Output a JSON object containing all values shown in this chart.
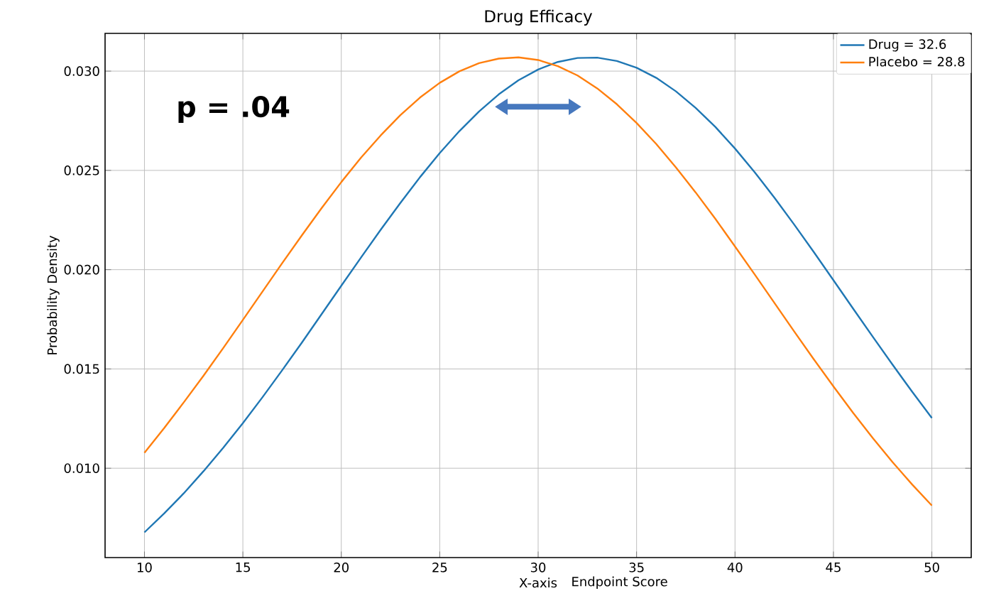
{
  "chart_data": {
    "type": "line",
    "title": "Drug Efficacy",
    "xlabel": "X-axis",
    "ylabel": "Probability Density",
    "annotations": [
      "p = .04",
      "Endpoint Score"
    ],
    "x": [
      10,
      11,
      12,
      13,
      14,
      15,
      16,
      17,
      18,
      19,
      20,
      21,
      22,
      23,
      24,
      25,
      26,
      27,
      28,
      29,
      30,
      31,
      32,
      33,
      34,
      35,
      36,
      37,
      38,
      39,
      40,
      41,
      42,
      43,
      44,
      45,
      46,
      47,
      48,
      49,
      50
    ],
    "series": [
      {
        "name": "Drug = 32.6",
        "color": "#1f77b4",
        "values": [
          0.00677,
          0.00772,
          0.00874,
          0.00985,
          0.01103,
          0.01227,
          0.01358,
          0.01494,
          0.01633,
          0.01776,
          0.01919,
          0.02061,
          0.02201,
          0.02336,
          0.02466,
          0.02587,
          0.02698,
          0.02797,
          0.02883,
          0.02954,
          0.03008,
          0.03046,
          0.03066,
          0.03068,
          0.03051,
          0.03017,
          0.02966,
          0.02898,
          0.02815,
          0.02719,
          0.0261,
          0.02491,
          0.02363,
          0.02228,
          0.02089,
          0.01947,
          0.01804,
          0.01662,
          0.01522,
          0.01385,
          0.01253
        ]
      },
      {
        "name": "Placebo = 28.8",
        "color": "#ff7f0e",
        "values": [
          0.01078,
          0.01202,
          0.01332,
          0.01466,
          0.01605,
          0.01747,
          0.0189,
          0.02033,
          0.02173,
          0.0231,
          0.02441,
          0.02564,
          0.02676,
          0.02778,
          0.02867,
          0.02941,
          0.02999,
          0.0304,
          0.03063,
          0.03069,
          0.03056,
          0.03025,
          0.02978,
          0.02913,
          0.02833,
          0.02739,
          0.02633,
          0.02515,
          0.02389,
          0.02256,
          0.02117,
          0.01976,
          0.01833,
          0.0169,
          0.01549,
          0.01412,
          0.01279,
          0.01152,
          0.01031,
          0.00918,
          0.00812
        ]
      }
    ],
    "xlim": [
      8,
      52
    ],
    "ylim": [
      0.0055,
      0.0319
    ],
    "xticks": [
      10,
      15,
      20,
      25,
      30,
      35,
      40,
      45,
      50
    ],
    "yticks": [
      {
        "value": 0.01,
        "label": "0.010"
      },
      {
        "value": 0.015,
        "label": "0.015"
      },
      {
        "value": 0.02,
        "label": "0.020"
      },
      {
        "value": 0.025,
        "label": "0.025"
      },
      {
        "value": 0.03,
        "label": "0.030"
      }
    ],
    "grid": true,
    "legend": "top right"
  }
}
